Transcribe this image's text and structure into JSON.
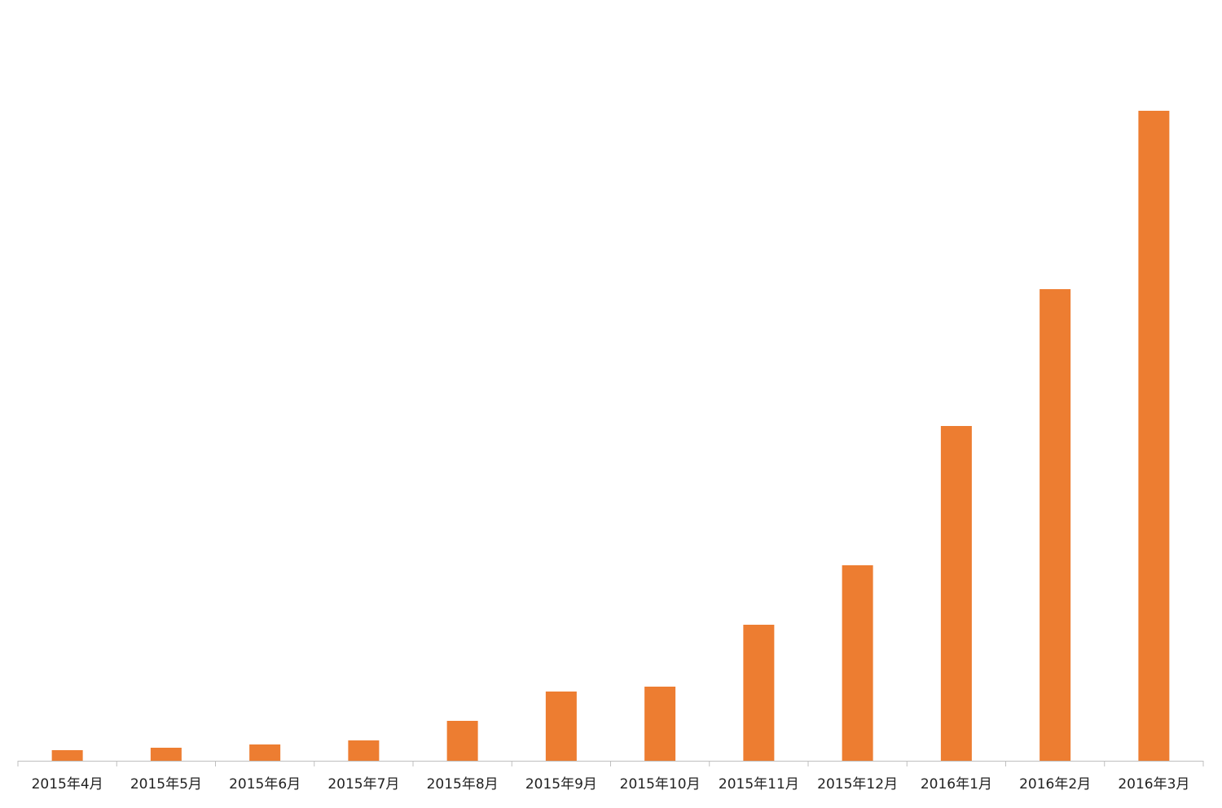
{
  "chart_data": {
    "type": "bar",
    "categories": [
      "2015年4月",
      "2015年5月",
      "2015年6月",
      "2015年7月",
      "2015年8月",
      "2015年9月",
      "2015年10月",
      "2015年11月",
      "2015年12月",
      "2016年1月",
      "2016年2月",
      "2016年3月"
    ],
    "values": [
      13,
      16,
      20,
      25,
      49,
      85,
      91,
      167,
      240,
      411,
      579,
      798
    ],
    "color": "#ed7d31"
  }
}
